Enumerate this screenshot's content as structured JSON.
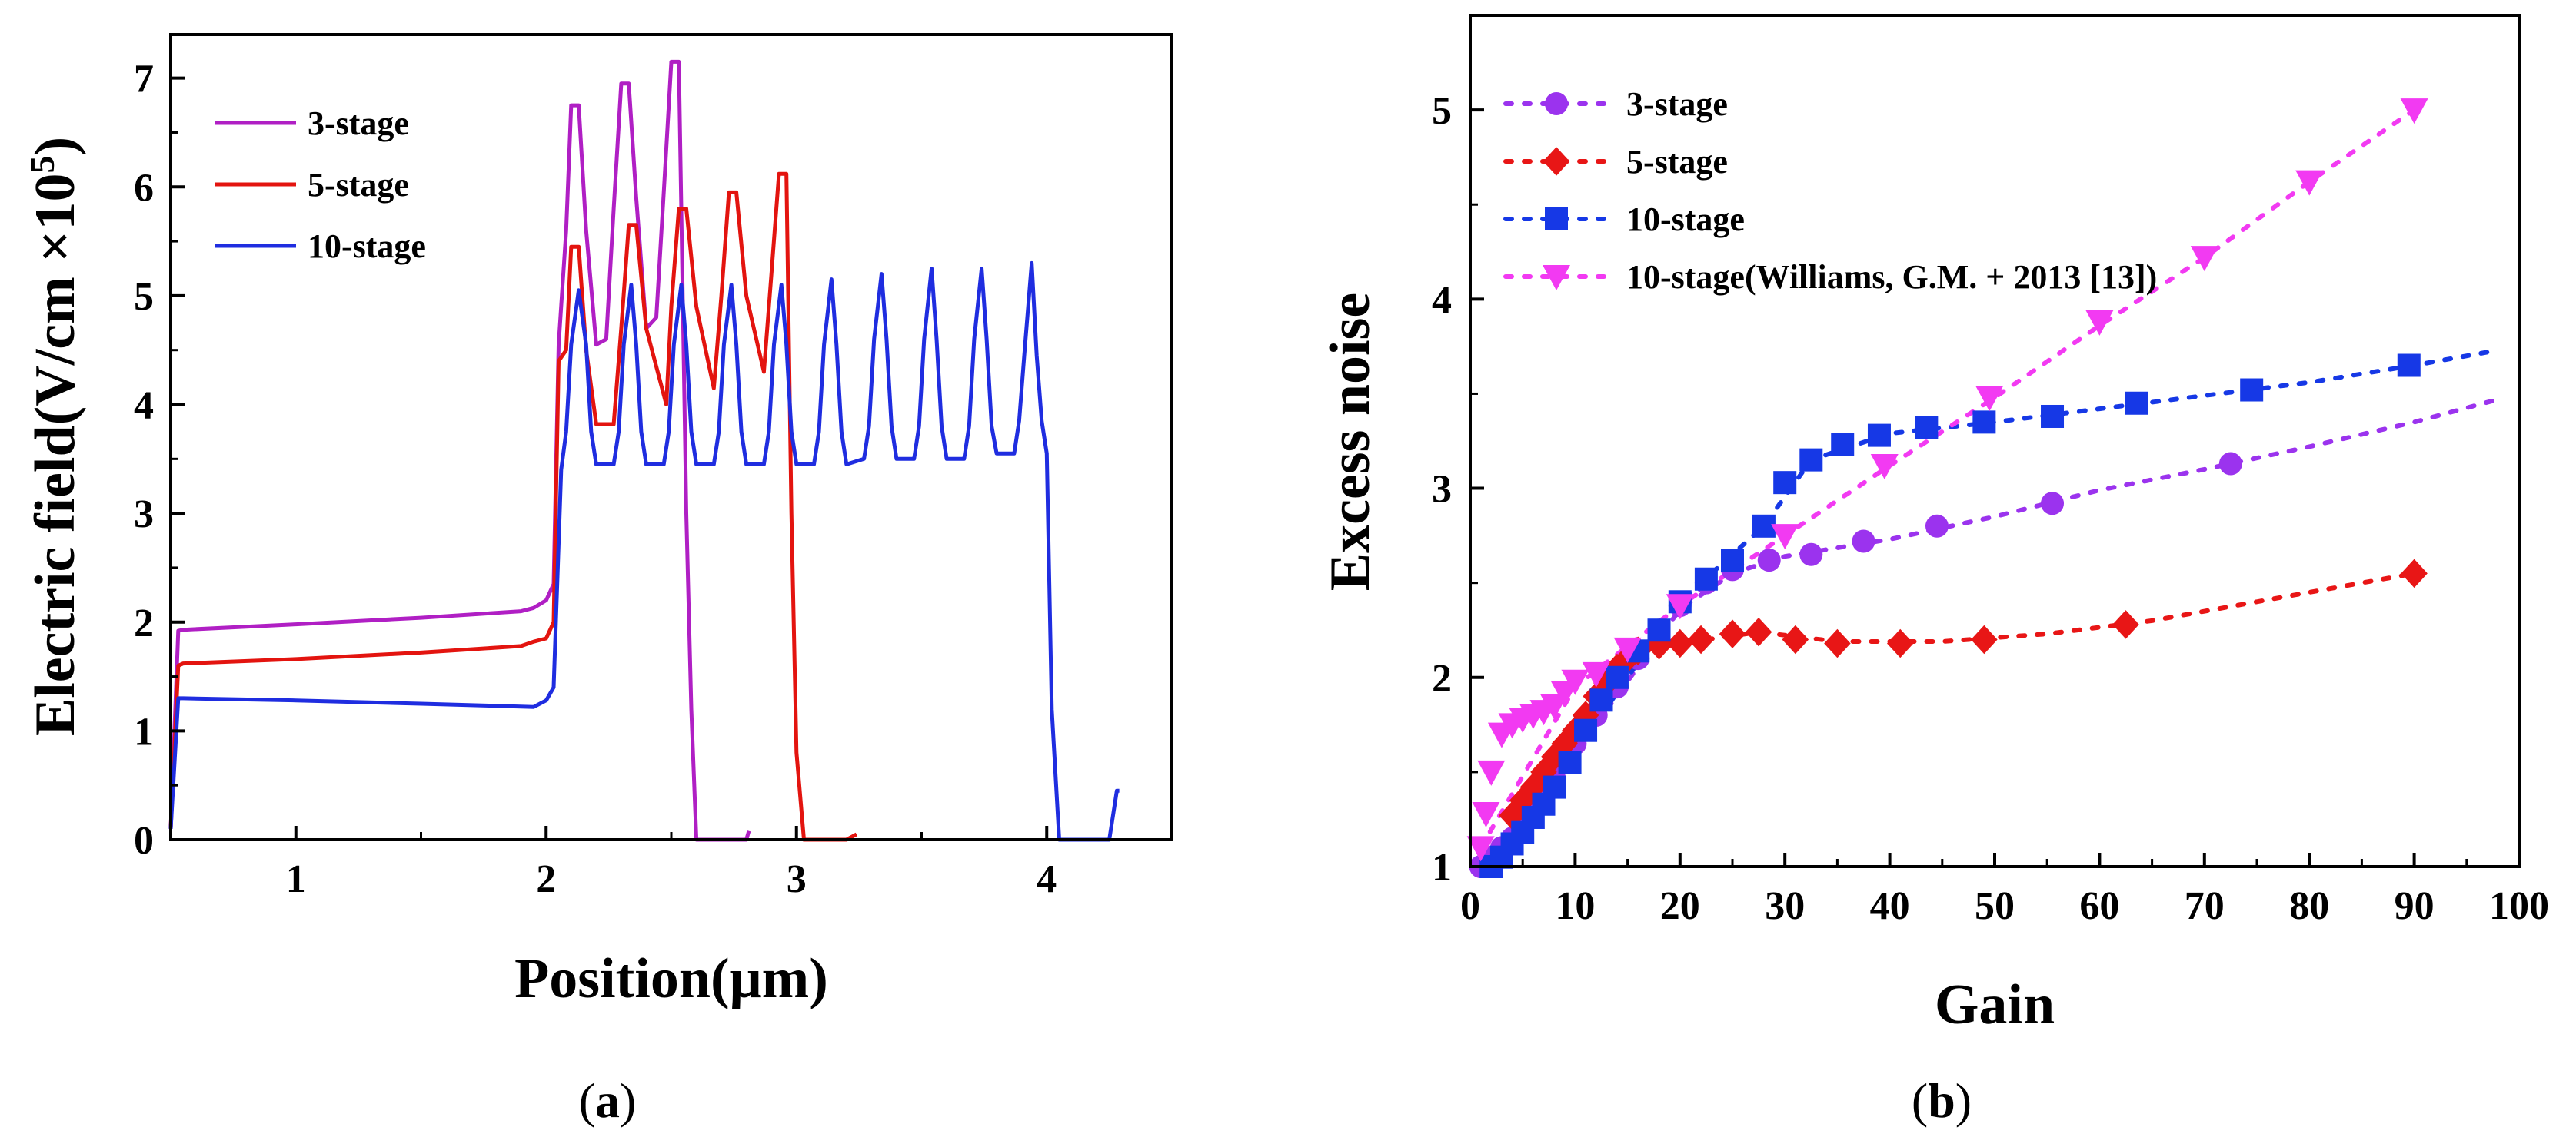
{
  "chart_data": [
    {
      "panel": "(a)",
      "type": "line",
      "title": "",
      "xlabel": "Position(μm)",
      "ylabel": "Electric field(V/cm ×10",
      "ylabel_superscript": "5",
      "ylabel_close": ")",
      "xlim": [
        0.5,
        4.5
      ],
      "ylim": [
        0,
        7.4
      ],
      "xticks": [
        1,
        2,
        3,
        4
      ],
      "yticks": [
        0,
        1,
        2,
        3,
        4,
        5,
        6,
        7
      ],
      "legend_position": "top-left",
      "series": [
        {
          "name": "3-stage",
          "color": "#b01fc4",
          "x": [
            0.5,
            0.53,
            0.55,
            1.0,
            1.5,
            1.9,
            1.95,
            2.0,
            2.03,
            2.05,
            2.08,
            2.1,
            2.13,
            2.16,
            2.2,
            2.24,
            2.27,
            2.3,
            2.33,
            2.36,
            2.4,
            2.44,
            2.47,
            2.5,
            2.53,
            2.56,
            2.58,
            2.6,
            2.62,
            2.8,
            2.81
          ],
          "y": [
            0.1,
            1.92,
            1.93,
            1.98,
            2.04,
            2.1,
            2.13,
            2.2,
            2.35,
            4.55,
            5.6,
            6.75,
            6.75,
            5.6,
            4.55,
            4.6,
            5.8,
            6.95,
            6.95,
            5.9,
            4.7,
            4.8,
            5.95,
            7.15,
            7.15,
            3.0,
            1.2,
            0.0,
            0.0,
            0.0,
            0.08
          ]
        },
        {
          "name": "5-stage",
          "color": "#e3140f",
          "x": [
            0.5,
            0.53,
            0.55,
            1.0,
            1.5,
            1.9,
            1.95,
            2.0,
            2.03,
            2.05,
            2.08,
            2.1,
            2.13,
            2.16,
            2.2,
            2.27,
            2.3,
            2.33,
            2.36,
            2.4,
            2.48,
            2.5,
            2.53,
            2.56,
            2.6,
            2.67,
            2.7,
            2.73,
            2.76,
            2.8,
            2.87,
            2.9,
            2.93,
            2.96,
            2.98,
            3.0,
            3.03,
            3.2,
            3.24
          ],
          "y": [
            0.1,
            1.6,
            1.62,
            1.66,
            1.72,
            1.78,
            1.82,
            1.85,
            2.0,
            4.4,
            4.5,
            5.45,
            5.45,
            4.5,
            3.82,
            3.82,
            4.7,
            5.65,
            5.65,
            4.7,
            4.0,
            4.9,
            5.8,
            5.8,
            4.9,
            4.15,
            5.0,
            5.95,
            5.95,
            5.0,
            4.3,
            5.2,
            6.12,
            6.12,
            3.0,
            0.8,
            0.0,
            0.0,
            0.05
          ]
        },
        {
          "name": "10-stage",
          "color": "#1f2de0",
          "x": [
            0.5,
            0.53,
            0.55,
            1.0,
            1.5,
            1.95,
            2.0,
            2.03,
            2.06,
            2.08,
            2.1,
            2.13,
            2.16,
            2.18,
            2.2,
            2.27,
            2.29,
            2.31,
            2.34,
            2.36,
            2.38,
            2.4,
            2.47,
            2.49,
            2.51,
            2.54,
            2.56,
            2.58,
            2.6,
            2.67,
            2.69,
            2.71,
            2.74,
            2.76,
            2.78,
            2.8,
            2.87,
            2.89,
            2.91,
            2.94,
            2.96,
            2.98,
            3.0,
            3.07,
            3.09,
            3.11,
            3.14,
            3.16,
            3.18,
            3.2,
            3.27,
            3.29,
            3.31,
            3.34,
            3.36,
            3.38,
            3.4,
            3.47,
            3.49,
            3.51,
            3.54,
            3.56,
            3.58,
            3.6,
            3.67,
            3.69,
            3.71,
            3.74,
            3.76,
            3.78,
            3.8,
            3.87,
            3.89,
            3.91,
            3.94,
            3.96,
            3.98,
            4.0,
            4.02,
            4.05,
            4.07,
            4.1,
            4.25,
            4.28,
            4.29
          ],
          "y": [
            0.1,
            1.3,
            1.3,
            1.28,
            1.25,
            1.22,
            1.28,
            1.4,
            3.4,
            3.75,
            4.55,
            5.05,
            4.55,
            3.75,
            3.45,
            3.45,
            3.75,
            4.55,
            5.1,
            4.55,
            3.75,
            3.45,
            3.45,
            3.75,
            4.55,
            5.1,
            4.55,
            3.75,
            3.45,
            3.45,
            3.75,
            4.55,
            5.1,
            4.55,
            3.75,
            3.45,
            3.45,
            3.75,
            4.55,
            5.1,
            4.55,
            3.75,
            3.45,
            3.45,
            3.75,
            4.55,
            5.15,
            4.55,
            3.75,
            3.45,
            3.5,
            3.8,
            4.6,
            5.2,
            4.6,
            3.8,
            3.5,
            3.5,
            3.8,
            4.6,
            5.25,
            4.6,
            3.8,
            3.5,
            3.5,
            3.8,
            4.6,
            5.25,
            4.6,
            3.8,
            3.55,
            3.55,
            3.85,
            4.45,
            5.3,
            4.45,
            3.85,
            3.55,
            1.2,
            0.0,
            0.0,
            0.0,
            0.0,
            0.45,
            0.45
          ]
        }
      ]
    },
    {
      "panel": "(b)",
      "type": "scatter",
      "title": "",
      "xlabel": "Gain",
      "ylabel": "Excess noise",
      "xlim": [
        0,
        100
      ],
      "ylim": [
        1,
        5.5
      ],
      "xticks": [
        0,
        10,
        20,
        30,
        40,
        50,
        60,
        70,
        80,
        90,
        100
      ],
      "yticks": [
        1,
        2,
        3,
        4,
        5
      ],
      "legend_position": "top-left",
      "series": [
        {
          "name": "3-stage",
          "color": "#9b33ee",
          "marker": "circle",
          "x": [
            1,
            2,
            3,
            4,
            5,
            6,
            7,
            8,
            9,
            10,
            12,
            14,
            16,
            18,
            20,
            22.5,
            25,
            28.5,
            32.5,
            37.5,
            44.5,
            55.5,
            72.5
          ],
          "y": [
            1.0,
            1.05,
            1.1,
            1.15,
            1.22,
            1.3,
            1.38,
            1.47,
            1.55,
            1.65,
            1.8,
            1.95,
            2.1,
            2.25,
            2.38,
            2.5,
            2.57,
            2.62,
            2.65,
            2.72,
            2.8,
            2.92,
            3.13
          ],
          "fit_x": [
            1,
            10,
            20,
            25,
            30,
            40,
            50,
            60,
            70,
            80,
            90,
            98
          ],
          "fit_y": [
            1.0,
            1.6,
            2.36,
            2.55,
            2.64,
            2.73,
            2.85,
            2.99,
            3.1,
            3.22,
            3.35,
            3.47
          ]
        },
        {
          "name": "5-stage",
          "color": "#e81616",
          "marker": "diamond",
          "x": [
            4,
            5,
            6,
            7,
            8,
            9,
            10,
            11,
            12,
            13,
            14,
            15,
            16,
            18,
            20,
            22,
            25,
            27.5,
            31,
            35,
            41,
            49,
            62.5,
            90
          ],
          "y": [
            1.27,
            1.35,
            1.42,
            1.5,
            1.58,
            1.65,
            1.72,
            1.8,
            1.9,
            1.97,
            2.05,
            2.1,
            2.14,
            2.17,
            2.18,
            2.2,
            2.23,
            2.24,
            2.2,
            2.18,
            2.18,
            2.2,
            2.28,
            2.55
          ],
          "fit_x": [
            4,
            8,
            12,
            16,
            20,
            27.5,
            35,
            45,
            55,
            65,
            75,
            90
          ],
          "fit_y": [
            1.27,
            1.58,
            1.9,
            2.14,
            2.18,
            2.24,
            2.19,
            2.19,
            2.23,
            2.3,
            2.4,
            2.55
          ]
        },
        {
          "name": "10-stage",
          "color": "#1638e6",
          "marker": "square",
          "x": [
            2,
            3,
            4,
            5,
            6,
            7,
            8,
            9.5,
            11,
            12.5,
            14,
            16,
            18,
            20,
            22.5,
            25,
            28,
            30,
            32.5,
            35.5,
            39,
            43.5,
            49,
            55.5,
            63.5,
            74.5,
            89.5
          ],
          "y": [
            1.0,
            1.05,
            1.12,
            1.18,
            1.26,
            1.33,
            1.42,
            1.55,
            1.72,
            1.88,
            2.0,
            2.14,
            2.25,
            2.4,
            2.52,
            2.62,
            2.8,
            3.03,
            3.15,
            3.23,
            3.28,
            3.32,
            3.35,
            3.38,
            3.45,
            3.52,
            3.65
          ],
          "fit_x": [
            2,
            10,
            20,
            28,
            32.5,
            40,
            50,
            60,
            70,
            80,
            90,
            97
          ],
          "fit_y": [
            1.0,
            1.6,
            2.4,
            2.8,
            3.15,
            3.29,
            3.35,
            3.42,
            3.49,
            3.56,
            3.65,
            3.72
          ]
        },
        {
          "name": "10-stage(Williams, G.M. + 2013 [13])",
          "color": "#f23af2",
          "marker": "triangle-down",
          "x": [
            1,
            1.5,
            2,
            3,
            4,
            5,
            6,
            7,
            8,
            9,
            10,
            12,
            15,
            20,
            30,
            39.5,
            49.5,
            60,
            70,
            80,
            90
          ],
          "y": [
            1.1,
            1.28,
            1.5,
            1.7,
            1.75,
            1.78,
            1.8,
            1.82,
            1.85,
            1.92,
            1.98,
            2.02,
            2.15,
            2.38,
            2.75,
            3.12,
            3.48,
            3.88,
            4.22,
            4.62,
            5.0
          ],
          "fit_x": [
            1,
            10,
            20,
            30,
            40,
            50,
            60,
            70,
            80,
            90
          ],
          "fit_y": [
            1.1,
            1.95,
            2.38,
            2.75,
            3.12,
            3.48,
            3.86,
            4.22,
            4.62,
            5.0
          ]
        }
      ]
    }
  ],
  "captions": {
    "a_open": "(",
    "a_letter": "a",
    "a_close": ")",
    "b_open": "(",
    "b_letter": "b",
    "b_close": ")"
  }
}
